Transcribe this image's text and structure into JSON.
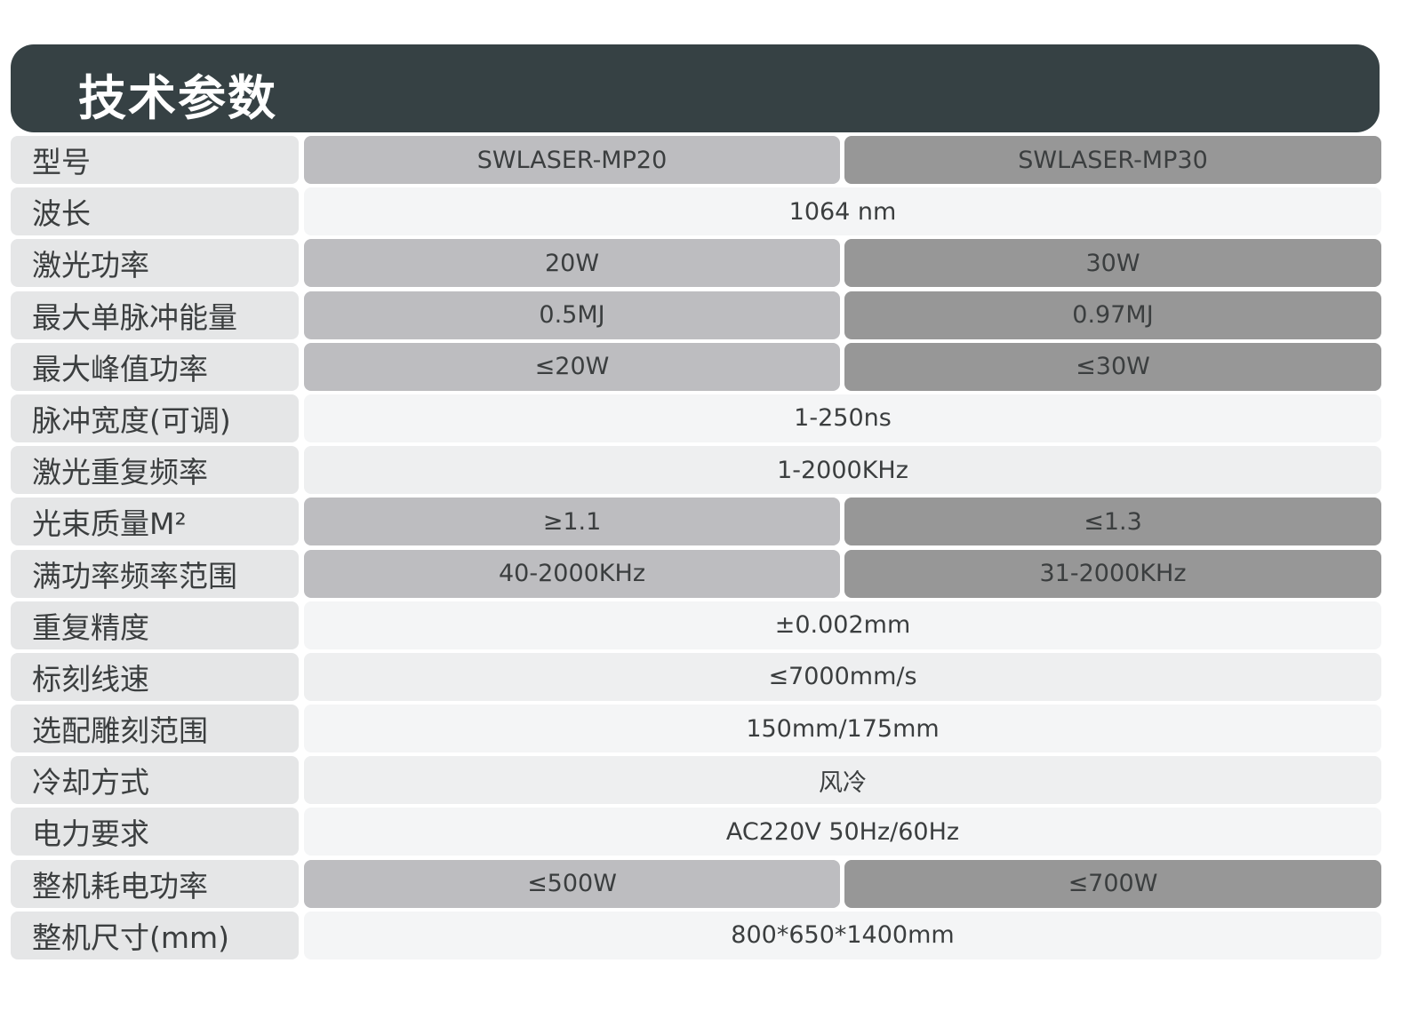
{
  "title": "技术参数",
  "colors": {
    "header_bg": "#364144",
    "label_bg": "#e5e6e7",
    "model1_bg": "#bdbdc0",
    "model2_bg": "#979797",
    "shared_bg": "#eeeff0"
  },
  "rows": [
    {
      "label": "型号",
      "values": [
        "SWLASER-MP20",
        "SWLASER-MP30"
      ]
    },
    {
      "label": "波长",
      "values": [
        "1064 nm"
      ]
    },
    {
      "label": "激光功率",
      "values": [
        "20W",
        "30W"
      ]
    },
    {
      "label": "最大单脉冲能量",
      "values": [
        "0.5MJ",
        "0.97MJ"
      ]
    },
    {
      "label": "最大峰值功率",
      "values": [
        "≤20W",
        "≤30W"
      ]
    },
    {
      "label": "脉冲宽度(可调)",
      "values": [
        "1-250ns"
      ]
    },
    {
      "label": "激光重复频率",
      "values": [
        "1-2000KHz"
      ]
    },
    {
      "label": "光束质量M²",
      "values": [
        "≥1.1",
        "≤1.3"
      ]
    },
    {
      "label": "满功率频率范围",
      "values": [
        "40-2000KHz",
        "31-2000KHz"
      ]
    },
    {
      "label": "重复精度",
      "values": [
        "±0.002mm"
      ]
    },
    {
      "label": "标刻线速",
      "values": [
        "≤7000mm/s"
      ]
    },
    {
      "label": "选配雕刻范围",
      "values": [
        "150mm/175mm"
      ]
    },
    {
      "label": "冷却方式",
      "values": [
        "风冷"
      ]
    },
    {
      "label": "电力要求",
      "values": [
        "AC220V 50Hz/60Hz"
      ]
    },
    {
      "label": "整机耗电功率",
      "values": [
        "≤500W",
        "≤700W"
      ]
    },
    {
      "label": "整机尺寸(mm)",
      "values": [
        "800*650*1400mm"
      ]
    }
  ]
}
